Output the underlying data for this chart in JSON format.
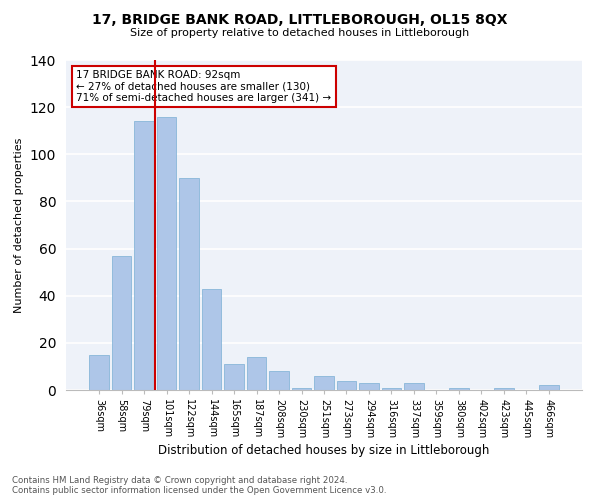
{
  "title": "17, BRIDGE BANK ROAD, LITTLEBOROUGH, OL15 8QX",
  "subtitle": "Size of property relative to detached houses in Littleborough",
  "xlabel": "Distribution of detached houses by size in Littleborough",
  "ylabel": "Number of detached properties",
  "categories": [
    "36sqm",
    "58sqm",
    "79sqm",
    "101sqm",
    "122sqm",
    "144sqm",
    "165sqm",
    "187sqm",
    "208sqm",
    "230sqm",
    "251sqm",
    "273sqm",
    "294sqm",
    "316sqm",
    "337sqm",
    "359sqm",
    "380sqm",
    "402sqm",
    "423sqm",
    "445sqm",
    "466sqm"
  ],
  "values": [
    15,
    57,
    114,
    116,
    90,
    43,
    11,
    14,
    8,
    1,
    6,
    4,
    3,
    1,
    3,
    0,
    1,
    0,
    1,
    0,
    2
  ],
  "bar_color": "#aec6e8",
  "bar_edge_color": "#7aafd4",
  "vline_color": "#cc0000",
  "vline_x": 2.5,
  "annotation_text": "17 BRIDGE BANK ROAD: 92sqm\n← 27% of detached houses are smaller (130)\n71% of semi-detached houses are larger (341) →",
  "annotation_box_color": "#cc0000",
  "ylim": [
    0,
    140
  ],
  "yticks": [
    0,
    20,
    40,
    60,
    80,
    100,
    120,
    140
  ],
  "background_color": "#eef2f9",
  "grid_color": "#ffffff",
  "footer_line1": "Contains HM Land Registry data © Crown copyright and database right 2024.",
  "footer_line2": "Contains public sector information licensed under the Open Government Licence v3.0."
}
